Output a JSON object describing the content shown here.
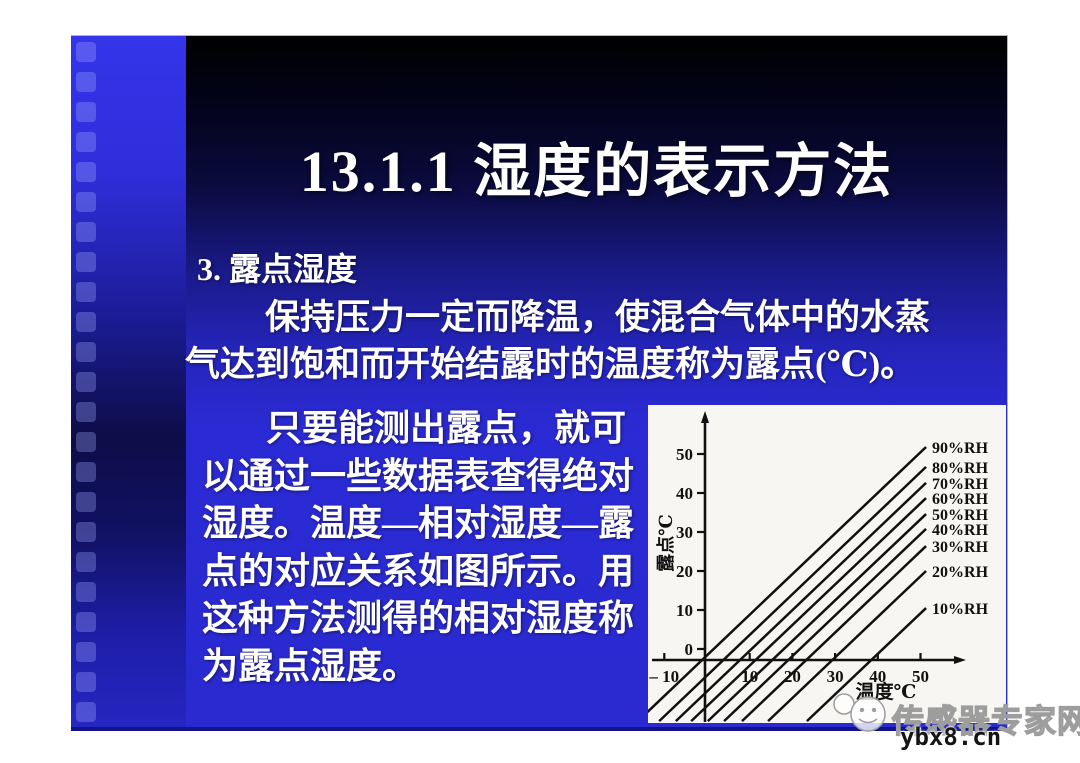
{
  "slide": {
    "title": "13.1.1  湿度的表示方法",
    "heading": "3. 露点湿度",
    "paragraph1": {
      "lines": [
        "保持压力一定而降温，使混合气体中的水蒸",
        "气达到饱和而开始结露时的温度称为露点(℃)。"
      ]
    },
    "paragraph2": {
      "lines": [
        "只要能测出露点，就可",
        "以通过一些数据表查得绝对",
        "湿度。温度—相对湿度—露",
        "点的对应关系如图所示。用",
        "这种方法测得的相对湿度称",
        "为露点湿度。"
      ]
    },
    "colors": {
      "background_top": "#000000",
      "background_bottom": "#2a2ad0",
      "filmstrip_top": "#3434ea",
      "text": "#ffffff"
    }
  },
  "chart_data": {
    "type": "line",
    "title": "",
    "xlabel": "温度℃",
    "ylabel": "露点℃",
    "x_ticks": [
      -10,
      10,
      20,
      30,
      40,
      50
    ],
    "y_ticks": [
      0,
      10,
      20,
      30,
      40,
      50
    ],
    "xlim": [
      -13,
      58
    ],
    "ylim": [
      -19,
      60
    ],
    "grid": false,
    "legend_position": "right-of-lines",
    "line_color": "#111111",
    "series": [
      {
        "name": "90%RH",
        "x": [
          -16.2,
          51.3
        ],
        "y": [
          -18.5,
          51.8
        ]
      },
      {
        "name": "80%RH",
        "x": [
          -11.2,
          51.3
        ],
        "y": [
          -18.5,
          46.7
        ]
      },
      {
        "name": "70%RH",
        "x": [
          -7.3,
          51.3
        ],
        "y": [
          -18.5,
          42.6
        ]
      },
      {
        "name": "60%RH",
        "x": [
          -3.7,
          51.3
        ],
        "y": [
          -18.5,
          38.7
        ]
      },
      {
        "name": "50%RH",
        "x": [
          0.2,
          51.3
        ],
        "y": [
          -18.5,
          34.6
        ]
      },
      {
        "name": "40%RH",
        "x": [
          4.0,
          51.3
        ],
        "y": [
          -18.5,
          30.8
        ]
      },
      {
        "name": "30%RH",
        "x": [
          8.2,
          51.3
        ],
        "y": [
          -18.5,
          26.4
        ]
      },
      {
        "name": "20%RH",
        "x": [
          14.3,
          51.3
        ],
        "y": [
          -18.5,
          20.0
        ]
      },
      {
        "name": "10%RH",
        "x": [
          23.4,
          51.3
        ],
        "y": [
          -18.5,
          10.5
        ]
      }
    ]
  },
  "watermark": {
    "site_name": "传感器专家网",
    "site_url": "ybx8.cn"
  }
}
